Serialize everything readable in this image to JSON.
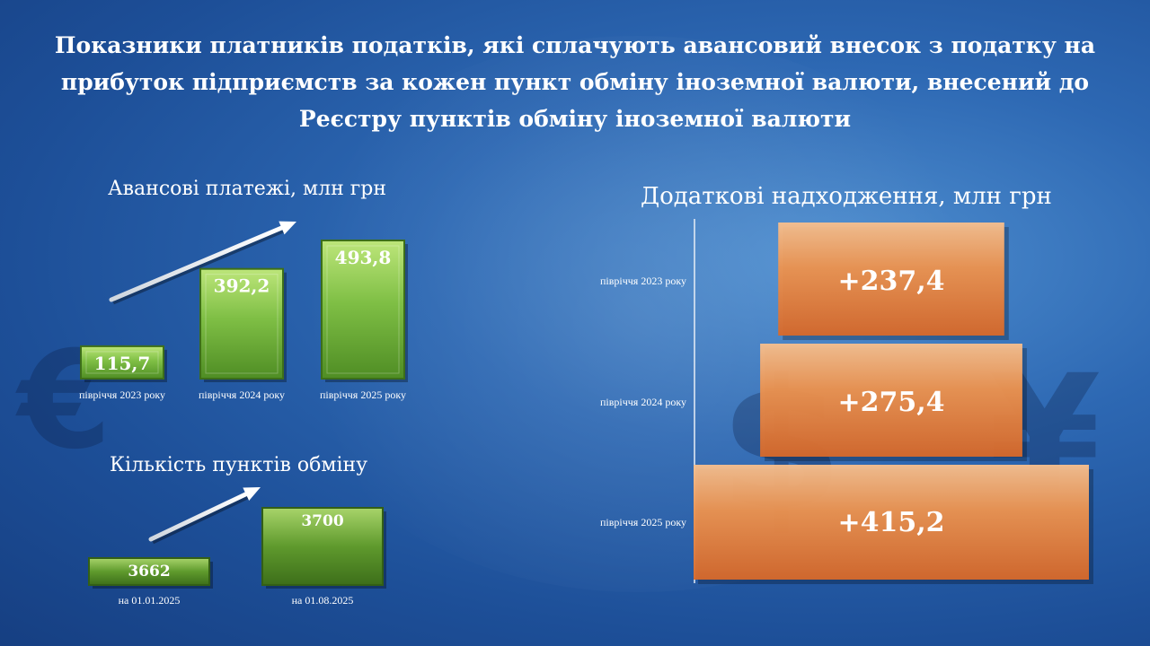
{
  "title": "Показники платників податків, які сплачують авансовий внесок з податку на прибуток підприємств за кожен пункт обміну іноземної валюти, внесений до Реєстру пунктів обміну іноземної валюти",
  "chart_data": [
    {
      "type": "bar",
      "title": "Авансові платежі, млн грн",
      "categories": [
        "півріччя 2023 року",
        "півріччя 2024 року",
        "півріччя 2025 року"
      ],
      "values": [
        115.7,
        392.2,
        493.8
      ],
      "value_labels": [
        "115,7",
        "392,2",
        "493,8"
      ],
      "ylim": [
        0,
        520
      ],
      "color": "#6fae3a",
      "trend_arrow": true
    },
    {
      "type": "bar",
      "title": "Кількість пунктів обміну",
      "categories": [
        "на 01.01.2025",
        "на 01.08.2025"
      ],
      "values": [
        3662,
        3700
      ],
      "value_labels": [
        "3662",
        "3700"
      ],
      "color": "#6fae3a",
      "trend_arrow": true
    },
    {
      "type": "bar",
      "orientation": "horizontal",
      "title": "Додаткові надходження, млн грн",
      "categories": [
        "півріччя 2023 року",
        "півріччя 2024 року",
        "півріччя 2025 року"
      ],
      "values": [
        237.4,
        275.4,
        415.2
      ],
      "value_labels": [
        "+237,4",
        "+275,4",
        "+415,2"
      ],
      "color": "#e07a30"
    }
  ]
}
